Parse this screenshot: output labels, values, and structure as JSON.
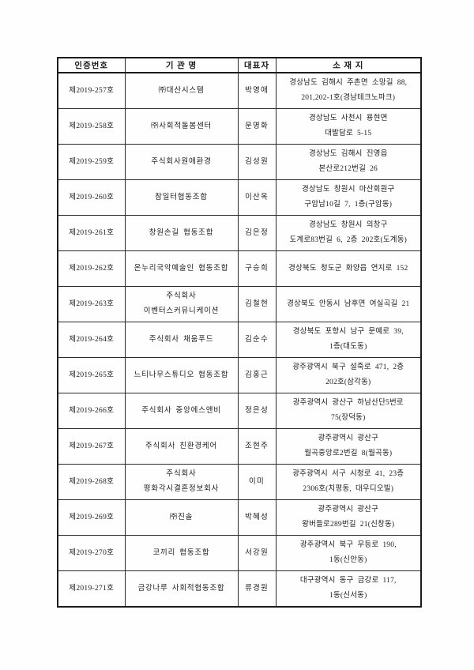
{
  "document": {
    "kind": "scanned-certification-list",
    "colors": {
      "background": "#fefefe",
      "text": "#1c1c1c",
      "border": "#1c1c1c"
    },
    "table": {
      "headers": [
        {
          "label": "인증번호"
        },
        {
          "label": "기 관 명"
        },
        {
          "label": "대표자"
        },
        {
          "label": "소 재 지"
        }
      ],
      "rows": [
        {
          "cert": "제2019-257호",
          "org": [
            "㈜대산시스템"
          ],
          "rep": "박영애",
          "addr": [
            "경상남도 김해시 주촌면 소망길 88,",
            "201,202-1호(경남테크노파크)"
          ]
        },
        {
          "cert": "제2019-258호",
          "org": [
            "㈜사회적돌봄센터"
          ],
          "rep": "문명화",
          "addr": [
            "경상남도 사천시 용현면",
            "대발담로 5-15"
          ]
        },
        {
          "cert": "제2019-259호",
          "org": [
            "주식회사원애환경"
          ],
          "rep": "김성원",
          "addr": [
            "경상남도 김해시 진영읍",
            "본산로212번길 26"
          ]
        },
        {
          "cert": "제2019-260호",
          "org": [
            "참일터협동조합"
          ],
          "rep": "이산옥",
          "addr": [
            "경상남도 창원시 마산회원구",
            "구암남10길 7, 1층(구암동)"
          ]
        },
        {
          "cert": "제2019-261호",
          "org": [
            "창원손길 협동조합"
          ],
          "rep": "김은정",
          "addr": [
            "경상남도 창원시 의창구",
            "도계로83번길 6, 2층 202호(도계동)"
          ]
        },
        {
          "cert": "제2019-262호",
          "org": [
            "온누리국악예술인 협동조합"
          ],
          "rep": "구승희",
          "addr": [
            "경상북도 청도군 화양읍 연지로 152"
          ]
        },
        {
          "cert": "제2019-263호",
          "org": [
            "주식회사",
            "이벤터스커뮤니케이션"
          ],
          "rep": "김철현",
          "addr": [
            "경상북도 안동시 남후면 여실곡길 21"
          ]
        },
        {
          "cert": "제2019-264호",
          "org": [
            "주식회사 채움푸드"
          ],
          "rep": "김순수",
          "addr": [
            "경상북도 포항시 남구 문예로 39,",
            "1층(대도동)"
          ]
        },
        {
          "cert": "제2019-265호",
          "org": [
            "느티나무스튜디오 협동조합"
          ],
          "rep": "김홍근",
          "addr": [
            "광주광역시 북구 설죽로 471, 2층",
            "202호(삼각동)"
          ]
        },
        {
          "cert": "제2019-266호",
          "org": [
            "주식회사 중앙에스앤비"
          ],
          "rep": "정은성",
          "addr": [
            "광주광역시 광산구 하남산단5번로",
            "75(장덕동)"
          ]
        },
        {
          "cert": "제2019-267호",
          "org": [
            "주식회사 친환경케어"
          ],
          "rep": "조현주",
          "addr": [
            "광주광역시 광산구",
            "월곡중앙로2번길 8(월곡동)"
          ]
        },
        {
          "cert": "제2019-268호",
          "org": [
            "주식회사",
            "평화각시결혼정보회사"
          ],
          "rep": "이미",
          "addr": [
            "광주광역시 서구 시청로 41, 23층",
            "2306호(치평동, 대우디오빌)"
          ]
        },
        {
          "cert": "제2019-269호",
          "org": [
            "㈜진솔"
          ],
          "rep": "박혜성",
          "addr": [
            "광주광역시 광산구",
            "왕버들로289번길 21(신창동)"
          ]
        },
        {
          "cert": "제2019-270호",
          "org": [
            "코끼리 협동조합"
          ],
          "rep": "서강원",
          "addr": [
            "광주광역시 북구 무등로 190,",
            "1동(신안동)"
          ]
        },
        {
          "cert": "제2019-271호",
          "org": [
            "금강나루 사회적협동조합"
          ],
          "rep": "류경원",
          "addr": [
            "대구광역시 동구 금강로 117,",
            "1동(신서동)"
          ]
        }
      ]
    }
  }
}
